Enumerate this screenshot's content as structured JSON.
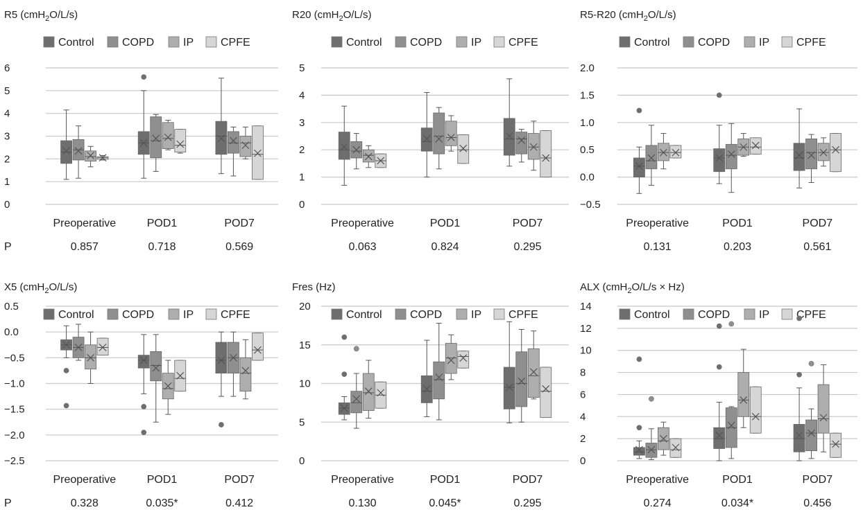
{
  "p_label": "P",
  "legend": [
    "Control",
    "COPD",
    "IP",
    "CPFE"
  ],
  "colors": {
    "Control": "#6e6e6e",
    "COPD": "#8f8f8f",
    "IP": "#aeaeae",
    "CPFE": "#d6d6d6"
  },
  "chart_data": [
    {
      "type": "box",
      "title": "R5 (cmH",
      "title_sub": "2",
      "title_tail": "O/L/s)",
      "categories": [
        "Preoperative",
        "POD1",
        "POD7"
      ],
      "ylim": [
        0,
        6
      ],
      "yticks": [
        "0",
        "1",
        "2",
        "3",
        "4",
        "5",
        "6"
      ],
      "p_values": [
        "0.857",
        "0.718",
        "0.569"
      ],
      "groups": [
        [
          {
            "min": 1.1,
            "q1": 1.8,
            "median": 2.3,
            "q3": 2.8,
            "max": 4.15,
            "mean": 2.35,
            "outliers": []
          },
          {
            "min": 1.15,
            "q1": 1.95,
            "median": 2.4,
            "q3": 2.85,
            "max": 3.45,
            "mean": 2.35,
            "outliers": []
          },
          {
            "min": 1.65,
            "q1": 1.9,
            "median": 2.1,
            "q3": 2.35,
            "max": 2.55,
            "mean": 2.15,
            "outliers": []
          },
          {
            "min": 1.95,
            "q1": 1.98,
            "median": 2.05,
            "q3": 2.1,
            "max": 2.15,
            "mean": 2.05,
            "outliers": []
          }
        ],
        [
          {
            "min": 1.15,
            "q1": 2.2,
            "median": 2.7,
            "q3": 3.2,
            "max": 5.0,
            "mean": 2.7,
            "outliers": [
              5.6
            ]
          },
          {
            "min": 1.45,
            "q1": 2.05,
            "median": 2.8,
            "q3": 3.85,
            "max": 3.95,
            "mean": 2.9,
            "outliers": []
          },
          {
            "min": 2.4,
            "q1": 2.45,
            "median": 2.9,
            "q3": 3.6,
            "max": 3.7,
            "mean": 2.95,
            "outliers": []
          },
          {
            "min": 2.25,
            "q1": 2.3,
            "median": 2.6,
            "q3": 3.3,
            "max": 3.3,
            "mean": 2.65,
            "outliers": []
          }
        ],
        [
          {
            "min": 1.35,
            "q1": 2.2,
            "median": 3.0,
            "q3": 3.65,
            "max": 5.55,
            "mean": 2.9,
            "outliers": []
          },
          {
            "min": 1.25,
            "q1": 2.25,
            "median": 2.7,
            "q3": 3.2,
            "max": 3.4,
            "mean": 2.8,
            "outliers": []
          },
          {
            "min": 2.0,
            "q1": 2.1,
            "median": 2.7,
            "q3": 3.0,
            "max": 3.4,
            "mean": 2.6,
            "outliers": []
          },
          {
            "min": 1.1,
            "q1": 1.1,
            "median": 2.2,
            "q3": 3.45,
            "max": 3.45,
            "mean": 2.25,
            "outliers": []
          }
        ]
      ]
    },
    {
      "type": "box",
      "title": "R20 (cmH",
      "title_sub": "2",
      "title_tail": "O/L/s)",
      "categories": [
        "Preoperative",
        "POD1",
        "POD7"
      ],
      "ylim": [
        0,
        5
      ],
      "yticks": [
        "0",
        "1",
        "2",
        "3",
        "4",
        "5"
      ],
      "p_values": [
        "0.063",
        "0.824",
        "0.295"
      ],
      "groups": [
        [
          {
            "min": 0.7,
            "q1": 1.65,
            "median": 2.0,
            "q3": 2.65,
            "max": 3.6,
            "mean": 2.1,
            "outliers": []
          },
          {
            "min": 1.3,
            "q1": 1.7,
            "median": 1.95,
            "q3": 2.3,
            "max": 2.6,
            "mean": 2.0,
            "outliers": []
          },
          {
            "min": 1.35,
            "q1": 1.55,
            "median": 1.8,
            "q3": 2.0,
            "max": 2.15,
            "mean": 1.75,
            "outliers": []
          },
          {
            "min": 1.35,
            "q1": 1.35,
            "median": 1.6,
            "q3": 1.85,
            "max": 1.85,
            "mean": 1.6,
            "outliers": []
          }
        ],
        [
          {
            "min": 1.0,
            "q1": 1.95,
            "median": 2.3,
            "q3": 2.8,
            "max": 4.1,
            "mean": 2.4,
            "outliers": []
          },
          {
            "min": 1.3,
            "q1": 1.85,
            "median": 2.5,
            "q3": 3.35,
            "max": 3.55,
            "mean": 2.4,
            "outliers": []
          },
          {
            "min": 1.95,
            "q1": 2.15,
            "median": 2.45,
            "q3": 3.05,
            "max": 3.25,
            "mean": 2.45,
            "outliers": []
          },
          {
            "min": 1.5,
            "q1": 1.5,
            "median": 2.0,
            "q3": 2.55,
            "max": 2.55,
            "mean": 2.05,
            "outliers": []
          }
        ],
        [
          {
            "min": 1.4,
            "q1": 1.8,
            "median": 2.4,
            "q3": 3.15,
            "max": 4.6,
            "mean": 2.5,
            "outliers": []
          },
          {
            "min": 1.55,
            "q1": 1.85,
            "median": 2.4,
            "q3": 2.65,
            "max": 2.75,
            "mean": 2.35,
            "outliers": []
          },
          {
            "min": 1.25,
            "q1": 1.65,
            "median": 2.1,
            "q3": 2.6,
            "max": 3.05,
            "mean": 2.1,
            "outliers": []
          },
          {
            "min": 1.0,
            "q1": 1.0,
            "median": 1.7,
            "q3": 2.7,
            "max": 2.7,
            "mean": 1.7,
            "outliers": []
          }
        ]
      ]
    },
    {
      "type": "box",
      "title": "R5-R20 (cmH",
      "title_sub": "2",
      "title_tail": "O/L/s)",
      "categories": [
        "Preoperative",
        "POD1",
        "POD7"
      ],
      "ylim": [
        -0.5,
        2.0
      ],
      "yticks": [
        "−0.5",
        "0.0",
        "0.5",
        "1.0",
        "1.5",
        "2.0"
      ],
      "p_values": [
        "0.131",
        "0.203",
        "0.561"
      ],
      "groups": [
        [
          {
            "min": -0.3,
            "q1": 0.0,
            "median": 0.2,
            "q3": 0.35,
            "max": 0.55,
            "mean": 0.2,
            "outliers": [
              1.22
            ]
          },
          {
            "min": -0.15,
            "q1": 0.15,
            "median": 0.3,
            "q3": 0.58,
            "max": 0.95,
            "mean": 0.35,
            "outliers": []
          },
          {
            "min": 0.15,
            "q1": 0.3,
            "median": 0.45,
            "q3": 0.62,
            "max": 0.8,
            "mean": 0.45,
            "outliers": []
          },
          {
            "min": 0.35,
            "q1": 0.35,
            "median": 0.45,
            "q3": 0.58,
            "max": 0.58,
            "mean": 0.45,
            "outliers": []
          }
        ],
        [
          {
            "min": -0.12,
            "q1": 0.1,
            "median": 0.35,
            "q3": 0.52,
            "max": 0.95,
            "mean": 0.35,
            "outliers": [
              1.5
            ]
          },
          {
            "min": -0.28,
            "q1": 0.15,
            "median": 0.4,
            "q3": 0.6,
            "max": 0.98,
            "mean": 0.42,
            "outliers": []
          },
          {
            "min": 0.38,
            "q1": 0.4,
            "median": 0.55,
            "q3": 0.7,
            "max": 0.8,
            "mean": 0.55,
            "outliers": []
          },
          {
            "min": 0.42,
            "q1": 0.42,
            "median": 0.55,
            "q3": 0.72,
            "max": 0.72,
            "mean": 0.58,
            "outliers": []
          }
        ],
        [
          {
            "min": -0.2,
            "q1": 0.12,
            "median": 0.35,
            "q3": 0.62,
            "max": 1.25,
            "mean": 0.4,
            "outliers": []
          },
          {
            "min": -0.1,
            "q1": 0.15,
            "median": 0.45,
            "q3": 0.7,
            "max": 0.78,
            "mean": 0.4,
            "outliers": []
          },
          {
            "min": 0.2,
            "q1": 0.3,
            "median": 0.45,
            "q3": 0.62,
            "max": 0.72,
            "mean": 0.45,
            "outliers": []
          },
          {
            "min": 0.1,
            "q1": 0.1,
            "median": 0.5,
            "q3": 0.8,
            "max": 0.8,
            "mean": 0.5,
            "outliers": []
          }
        ]
      ]
    },
    {
      "type": "box",
      "title": "X5 (cmH",
      "title_sub": "2",
      "title_tail": "O/L/s)",
      "categories": [
        "Preoperative",
        "POD1",
        "POD7"
      ],
      "ylim": [
        -2.5,
        0.5
      ],
      "yticks": [
        "−2.5",
        "−2.0",
        "−1.5",
        "−1.0",
        "−0.5",
        "0.0",
        "0.5"
      ],
      "p_values": [
        "0.328",
        "0.035*",
        "0.412"
      ],
      "groups": [
        [
          {
            "min": -0.5,
            "q1": -0.35,
            "median": -0.25,
            "q3": -0.15,
            "max": 0.12,
            "mean": -0.25,
            "outliers": [
              -0.75,
              -1.43
            ]
          },
          {
            "min": -0.55,
            "q1": -0.5,
            "median": -0.3,
            "q3": -0.1,
            "max": 0.15,
            "mean": -0.3,
            "outliers": []
          },
          {
            "min": -1.0,
            "q1": -0.72,
            "median": -0.5,
            "q3": -0.25,
            "max": 0.0,
            "mean": -0.5,
            "outliers": []
          },
          {
            "min": -0.45,
            "q1": -0.45,
            "median": -0.3,
            "q3": -0.12,
            "max": -0.12,
            "mean": -0.3,
            "outliers": []
          }
        ],
        [
          {
            "min": -1.2,
            "q1": -0.7,
            "median": -0.55,
            "q3": -0.45,
            "max": -0.05,
            "mean": -0.55,
            "outliers": [
              -1.45,
              -1.95
            ]
          },
          {
            "min": -1.75,
            "q1": -0.95,
            "median": -0.65,
            "q3": -0.38,
            "max": -0.05,
            "mean": -0.7,
            "outliers": []
          },
          {
            "min": -1.6,
            "q1": -1.3,
            "median": -1.1,
            "q3": -0.8,
            "max": -0.55,
            "mean": -1.05,
            "outliers": []
          },
          {
            "min": -1.15,
            "q1": -1.15,
            "median": -0.9,
            "q3": -0.55,
            "max": -0.55,
            "mean": -0.85,
            "outliers": []
          }
        ],
        [
          {
            "min": -1.25,
            "q1": -0.8,
            "median": -0.55,
            "q3": -0.2,
            "max": 0.0,
            "mean": -0.55,
            "outliers": [
              -1.8
            ]
          },
          {
            "min": -1.25,
            "q1": -0.8,
            "median": -0.5,
            "q3": -0.2,
            "max": 0.0,
            "mean": -0.5,
            "outliers": []
          },
          {
            "min": -1.3,
            "q1": -1.15,
            "median": -0.8,
            "q3": -0.5,
            "max": -0.15,
            "mean": -0.75,
            "outliers": []
          },
          {
            "min": -0.55,
            "q1": -0.55,
            "median": -0.35,
            "q3": -0.02,
            "max": -0.02,
            "mean": -0.35,
            "outliers": []
          }
        ]
      ]
    },
    {
      "type": "box",
      "title": "Fres (Hz)",
      "title_sub": "",
      "title_tail": "",
      "categories": [
        "Preoperative",
        "POD1",
        "POD7"
      ],
      "ylim": [
        0,
        20
      ],
      "yticks": [
        "0",
        "5",
        "10",
        "15",
        "20"
      ],
      "p_values": [
        "0.130",
        "0.045*",
        "0.295"
      ],
      "groups": [
        [
          {
            "min": 5.3,
            "q1": 6.0,
            "median": 6.8,
            "q3": 7.5,
            "max": 8.3,
            "mean": 6.8,
            "outliers": [
              11.2,
              16.0
            ]
          },
          {
            "min": 4.2,
            "q1": 6.2,
            "median": 7.5,
            "q3": 9.0,
            "max": 11.3,
            "mean": 8.0,
            "outliers": [
              14.5
            ]
          },
          {
            "min": 5.5,
            "q1": 6.5,
            "median": 8.8,
            "q3": 11.3,
            "max": 13.0,
            "mean": 9.0,
            "outliers": []
          },
          {
            "min": 6.8,
            "q1": 6.8,
            "median": 8.5,
            "q3": 10.2,
            "max": 10.2,
            "mean": 8.8,
            "outliers": []
          }
        ],
        [
          {
            "min": 5.7,
            "q1": 7.5,
            "median": 9.0,
            "q3": 11.0,
            "max": 15.6,
            "mean": 9.3,
            "outliers": []
          },
          {
            "min": 5.3,
            "q1": 8.0,
            "median": 10.5,
            "q3": 12.8,
            "max": 17.8,
            "mean": 10.8,
            "outliers": []
          },
          {
            "min": 10.5,
            "q1": 11.3,
            "median": 13.3,
            "q3": 15.2,
            "max": 16.3,
            "mean": 13.0,
            "outliers": []
          },
          {
            "min": 12.0,
            "q1": 12.0,
            "median": 13.5,
            "q3": 14.2,
            "max": 14.2,
            "mean": 13.3,
            "outliers": []
          }
        ],
        [
          {
            "min": 4.9,
            "q1": 6.7,
            "median": 9.5,
            "q3": 12.1,
            "max": 18.0,
            "mean": 9.5,
            "outliers": []
          },
          {
            "min": 5.0,
            "q1": 7.0,
            "median": 10.0,
            "q3": 14.1,
            "max": 17.0,
            "mean": 10.3,
            "outliers": []
          },
          {
            "min": 8.0,
            "q1": 8.2,
            "median": 11.0,
            "q3": 14.5,
            "max": 16.8,
            "mean": 11.5,
            "outliers": []
          },
          {
            "min": 5.6,
            "q1": 5.6,
            "median": 9.0,
            "q3": 12.1,
            "max": 12.1,
            "mean": 9.3,
            "outliers": []
          }
        ]
      ]
    },
    {
      "type": "box",
      "title": "ALX (cmH",
      "title_sub": "2",
      "title_tail": "O/L/s × Hz)",
      "categories": [
        "Preoperative",
        "POD1",
        "POD7"
      ],
      "ylim": [
        0,
        14
      ],
      "yticks": [
        "0",
        "2",
        "4",
        "6",
        "8",
        "10",
        "12",
        "14"
      ],
      "p_values": [
        "0.274",
        "0.034*",
        "0.456"
      ],
      "groups": [
        [
          {
            "min": 0.2,
            "q1": 0.5,
            "median": 0.8,
            "q3": 1.2,
            "max": 1.8,
            "mean": 1.0,
            "outliers": [
              3.0,
              9.2
            ]
          },
          {
            "min": 0.1,
            "q1": 0.3,
            "median": 1.0,
            "q3": 1.6,
            "max": 2.9,
            "mean": 1.0,
            "outliers": [
              5.6
            ]
          },
          {
            "min": 0.5,
            "q1": 1.0,
            "median": 1.8,
            "q3": 3.0,
            "max": 3.5,
            "mean": 2.0,
            "outliers": []
          },
          {
            "min": 0.3,
            "q1": 0.3,
            "median": 1.0,
            "q3": 2.0,
            "max": 2.0,
            "mean": 1.2,
            "outliers": []
          }
        ],
        [
          {
            "min": 0.0,
            "q1": 1.1,
            "median": 2.0,
            "q3": 3.0,
            "max": 5.3,
            "mean": 2.3,
            "outliers": [
              8.5,
              12.2
            ]
          },
          {
            "min": 0.2,
            "q1": 1.2,
            "median": 3.0,
            "q3": 4.8,
            "max": 4.9,
            "mean": 3.2,
            "outliers": [
              12.4
            ]
          },
          {
            "min": 3.0,
            "q1": 4.0,
            "median": 5.5,
            "q3": 8.0,
            "max": 10.1,
            "mean": 5.5,
            "outliers": []
          },
          {
            "min": 2.5,
            "q1": 2.5,
            "median": 4.0,
            "q3": 6.7,
            "max": 6.7,
            "mean": 4.0,
            "outliers": []
          }
        ],
        [
          {
            "min": 0.0,
            "q1": 0.8,
            "median": 2.0,
            "q3": 3.3,
            "max": 6.6,
            "mean": 2.3,
            "outliers": [
              7.8,
              12.9
            ]
          },
          {
            "min": 0.2,
            "q1": 0.9,
            "median": 2.5,
            "q3": 3.7,
            "max": 4.7,
            "mean": 2.5,
            "outliers": [
              8.8
            ]
          },
          {
            "min": 0.8,
            "q1": 2.5,
            "median": 3.8,
            "q3": 6.9,
            "max": 8.7,
            "mean": 3.9,
            "outliers": []
          },
          {
            "min": 0.3,
            "q1": 0.3,
            "median": 1.5,
            "q3": 2.5,
            "max": 2.5,
            "mean": 1.5,
            "outliers": []
          }
        ]
      ]
    }
  ]
}
